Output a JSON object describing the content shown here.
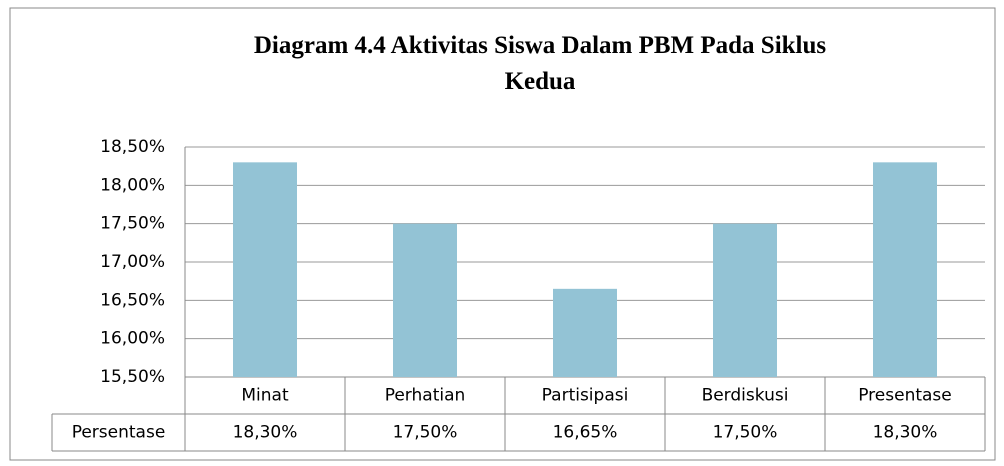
{
  "chart_data": {
    "type": "bar",
    "title": "Diagram 4.4 Aktivitas Siswa Dalam PBM Pada Siklus Kedua",
    "categories": [
      "Minat",
      "Perhatian",
      "Partisipasi",
      "Berdiskusi",
      "Presentase"
    ],
    "series": [
      {
        "name": "Persentase",
        "color": "#93c3d5",
        "values": [
          18.3,
          17.5,
          16.65,
          17.5,
          18.3
        ],
        "value_labels": [
          "18,30%",
          "17,50%",
          "16,65%",
          "17,50%",
          "18,30%"
        ]
      }
    ],
    "ylim": [
      15.5,
      18.5
    ],
    "yticks": [
      {
        "value": 15.5,
        "label": "15,50%"
      },
      {
        "value": 16,
        "label": "16,00%"
      },
      {
        "value": 16.5,
        "label": "16,50%"
      },
      {
        "value": 17,
        "label": "17,00%"
      },
      {
        "value": 17.5,
        "label": "17,50%"
      },
      {
        "value": 18,
        "label": "18,00%"
      },
      {
        "value": 18.5,
        "label": "18,50%"
      }
    ],
    "grid": true
  }
}
